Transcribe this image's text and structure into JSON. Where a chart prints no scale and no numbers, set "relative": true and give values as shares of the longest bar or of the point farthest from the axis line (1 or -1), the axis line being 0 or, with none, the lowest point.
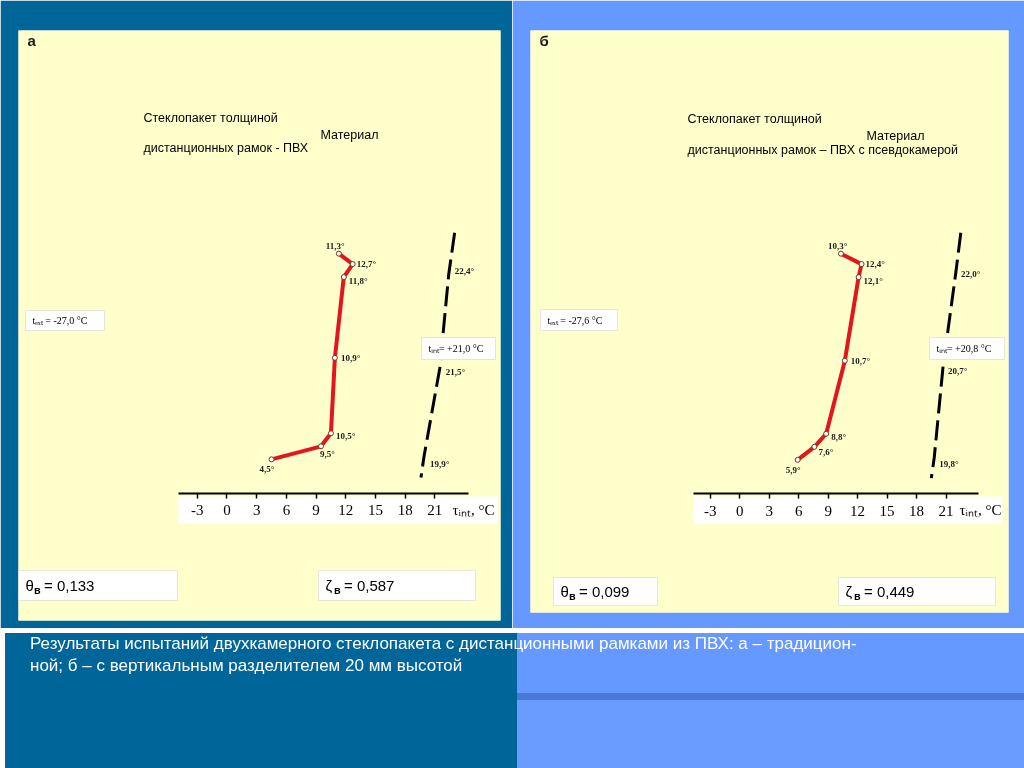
{
  "chart_data": [
    {
      "type": "line",
      "subtitle": "Стеклопакет толщиной\nМатериал\nдистанционных рамок - ПВХ",
      "xlabel": "τᵢₙₜ, °C",
      "xlim": [
        -4.9,
        24.4
      ],
      "xticks": [
        -3,
        0,
        3,
        6,
        9,
        12,
        15,
        18,
        21
      ],
      "relative": true,
      "tick_labels": "x",
      "marker": "circle",
      "series": [
        {
          "color": "#e3161e",
          "x": [
            11.3,
            12.7,
            11.8,
            10.9,
            10.5,
            9.5,
            4.5
          ],
          "values": [
            0.92,
            0.88,
            0.83,
            0.52,
            0.23,
            0.18,
            0.13
          ]
        },
        {
          "color": "#000000",
          "line_style": "dashed",
          "marker": "none",
          "x": [
            23.0,
            22.4,
            21.5,
            19.9,
            19.6
          ],
          "values": [
            1,
            0.84,
            0.48,
            0.14,
            0.06
          ]
        }
      ],
      "annotations": [
        "а",
        "tₑₓₜ = -27,0 °C",
        "tᵢₙₜ= +21,0 °C",
        "θ$_{в}$ = 0,133",
        "ζ$_{в}$ = 0,587",
        {
          "text": "11,3°",
          "x": 11.3,
          "y": 0.92
        },
        {
          "text": "12,7°",
          "x": 12.7,
          "y": 0.88
        },
        {
          "text": "11,8°",
          "x": 11.8,
          "y": 0.83
        },
        {
          "text": "10,9°",
          "x": 10.9,
          "y": 0.52
        },
        {
          "text": "10,5°",
          "x": 10.5,
          "y": 0.23
        },
        {
          "text": "9,5°",
          "x": 9.5,
          "y": 0.18
        },
        {
          "text": "4,5°",
          "x": 4.5,
          "y": 0.13
        },
        {
          "text": "22,4°",
          "x": 22.4,
          "y": 0.84
        },
        {
          "text": "21,5°",
          "x": 21.5,
          "y": 0.48
        },
        {
          "text": "19,9°",
          "x": 19.9,
          "y": 0.14
        },
        "Результаты испытаний двухкамерного стеклопакета с дистанционными рамками из ПВХ: а – традицион-\nной; б – с вертикальным разделителем 20 мм высотой"
      ]
    },
    {
      "type": "line",
      "subtitle": "Стеклопакет толщиной\nМатериал\nдистанционных рамок – ПВХ с псевдокамерой",
      "xlabel": "τᵢₙₜ, °C",
      "xlim": [
        -4.7,
        24.3
      ],
      "xticks": [
        -3,
        0,
        3,
        6,
        9,
        12,
        15,
        18,
        21
      ],
      "relative": true,
      "tick_labels": "x",
      "marker": "circle",
      "series": [
        {
          "color": "#e3161e",
          "x": [
            10.3,
            12.4,
            12.1,
            10.7,
            8.8,
            7.6,
            5.9
          ],
          "values": [
            0.92,
            0.88,
            0.83,
            0.51,
            0.23,
            0.18,
            0.13
          ]
        },
        {
          "color": "#000000",
          "line_style": "dashed",
          "marker": "none",
          "x": [
            22.5,
            22.0,
            20.7,
            19.8,
            19.5
          ],
          "values": [
            1,
            0.85,
            0.49,
            0.14,
            0.06
          ]
        }
      ],
      "annotations": [
        "б",
        "tₑₓₜ = -27,6 °C",
        "tᵢₙₜ= +20,8 °C",
        "θ$_{в}$ = 0,099",
        "ζ$_{в}$ = 0,449",
        {
          "text": "10,3°",
          "x": 10.3,
          "y": 0.92
        },
        {
          "text": "12,4°",
          "x": 12.4,
          "y": 0.88
        },
        {
          "text": "12,1°",
          "x": 12.1,
          "y": 0.83
        },
        {
          "text": "10,7°",
          "x": 10.7,
          "y": 0.51
        },
        {
          "text": "8,8°",
          "x": 8.8,
          "y": 0.23
        },
        {
          "text": "7,6°",
          "x": 7.6,
          "y": 0.18
        },
        {
          "text": "5,9°",
          "x": 5.9,
          "y": 0.13
        },
        {
          "text": "22,0°",
          "x": 22.0,
          "y": 0.85
        },
        {
          "text": "20,7°",
          "x": 20.7,
          "y": 0.49
        },
        {
          "text": "19,8°",
          "x": 19.8,
          "y": 0.14
        }
      ]
    }
  ]
}
